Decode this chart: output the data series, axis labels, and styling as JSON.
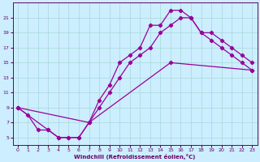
{
  "xlabel": "Windchill (Refroidissement éolien,°C)",
  "bg_color": "#cceeff",
  "line_color": "#990099",
  "xlim": [
    -0.5,
    23.5
  ],
  "ylim": [
    4,
    23
  ],
  "yticks": [
    5,
    7,
    9,
    11,
    13,
    15,
    17,
    19,
    21
  ],
  "xticks": [
    0,
    1,
    2,
    3,
    4,
    5,
    6,
    7,
    8,
    9,
    10,
    11,
    12,
    13,
    14,
    15,
    16,
    17,
    18,
    19,
    20,
    21,
    22,
    23
  ],
  "line1_x": [
    0,
    1,
    2,
    3,
    4,
    5,
    6,
    7,
    8,
    9,
    10,
    11,
    12,
    13,
    14,
    15,
    16,
    17,
    18,
    19,
    20,
    21,
    22,
    23
  ],
  "line1_y": [
    9,
    8,
    6,
    6,
    5,
    5,
    5,
    7,
    10,
    12,
    15,
    16,
    17,
    20,
    20,
    22,
    22,
    21,
    19,
    18,
    17,
    16,
    15,
    14
  ],
  "line2_x": [
    0,
    3,
    4,
    5,
    6,
    7,
    8,
    9,
    10,
    11,
    12,
    13,
    14,
    15,
    16,
    17,
    18,
    19,
    20,
    21,
    22,
    23
  ],
  "line2_y": [
    9,
    6,
    5,
    5,
    5,
    7,
    9,
    11,
    13,
    15,
    16,
    17,
    19,
    20,
    21,
    21,
    19,
    19,
    18,
    17,
    16,
    15
  ],
  "line3_x": [
    0,
    7,
    15,
    23
  ],
  "line3_y": [
    9,
    7,
    15,
    14
  ]
}
